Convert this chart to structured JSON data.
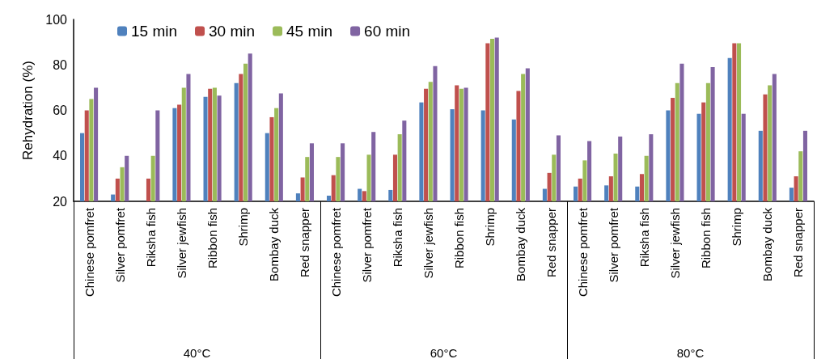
{
  "chart_data": {
    "type": "bar",
    "ylabel": "Rehydration (%)",
    "categories": [
      "Chinese pomfret",
      "Silver pomfret",
      "Riksha fish",
      "Silver jewfish",
      "Ribbon fish",
      "Shrimp",
      "Bombay duck",
      "Red snapper",
      "Chinese pomfret",
      "Silver pomfret",
      "Riksha fish",
      "Silver jewfish",
      "Ribbon fish",
      "Shrimp",
      "Bombay duck",
      "Red snapper",
      "Chinese pomfret",
      "Silver pomfret",
      "Riksha fish",
      "Silver jewfish",
      "Ribbon fish",
      "Shrimp",
      "Bombay duck",
      "Red snapper"
    ],
    "annotations": [
      "40°C",
      "60°C",
      "80°C"
    ],
    "series": [
      {
        "name": "15 min",
        "color": "#4f81bd",
        "values": [
          50,
          23,
          null,
          61,
          66,
          72,
          50,
          23.5,
          22.5,
          25.5,
          25,
          63.5,
          60.5,
          60,
          56,
          25.5,
          26.5,
          27,
          26.5,
          60,
          58.5,
          83,
          51,
          26
        ]
      },
      {
        "name": "30 min",
        "color": "#c0504d",
        "values": [
          60,
          30,
          30,
          62.5,
          69.5,
          76,
          57,
          30.5,
          31.5,
          24.5,
          40.5,
          69.5,
          71,
          89.5,
          68.5,
          32.5,
          30,
          31,
          32,
          65.5,
          63.5,
          89.5,
          67,
          31
        ]
      },
      {
        "name": "45 min",
        "color": "#9bbb59",
        "values": [
          65,
          35,
          40,
          70,
          70,
          80.5,
          61,
          39.5,
          39.5,
          40.5,
          49.5,
          72.5,
          69.5,
          91.5,
          76,
          40.5,
          38,
          41,
          40,
          72,
          72,
          89.5,
          71,
          42
        ]
      },
      {
        "name": "60 min",
        "color": "#8064a2",
        "values": [
          70,
          40,
          60,
          76,
          66.5,
          85,
          67.5,
          45.5,
          45.5,
          50.5,
          55.5,
          79.5,
          70,
          92,
          78.5,
          49,
          46.5,
          48.5,
          49.5,
          80.5,
          79,
          58.5,
          76,
          51
        ]
      }
    ],
    "ylim": [
      20,
      100
    ],
    "yticks": [
      20,
      40,
      60,
      80,
      100
    ],
    "grid": false,
    "legend": "top left"
  }
}
